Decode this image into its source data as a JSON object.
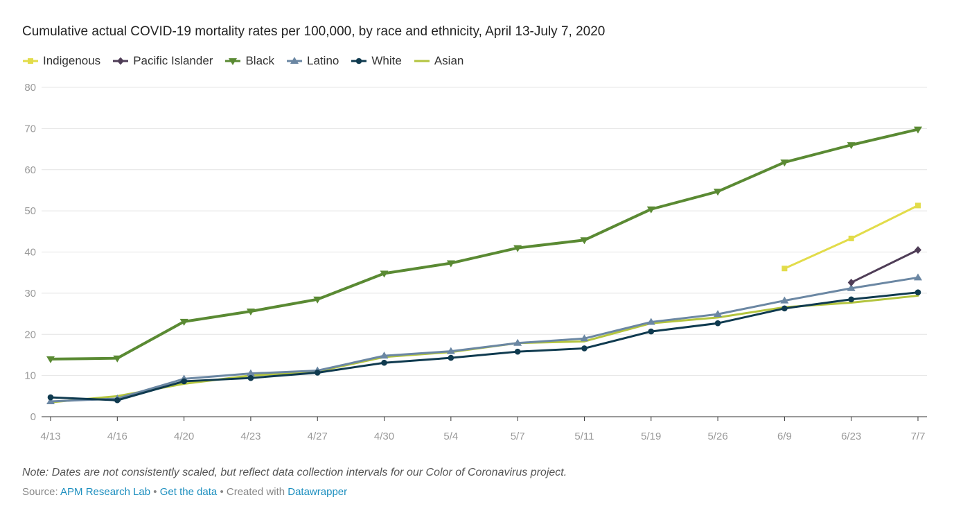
{
  "chart_data": {
    "type": "line",
    "title": "Cumulative actual COVID-19 mortality rates per 100,000, by race and ethnicity, April 13-July 7, 2020",
    "x": [
      "4/13",
      "4/16",
      "4/20",
      "4/23",
      "4/27",
      "4/30",
      "5/4",
      "5/7",
      "5/11",
      "5/19",
      "5/26",
      "6/9",
      "6/23",
      "7/7"
    ],
    "ylim": [
      0,
      80
    ],
    "yticks": [
      "0",
      "10",
      "20",
      "30",
      "40",
      "50",
      "60",
      "70",
      "80"
    ],
    "grid": true,
    "legend_position": "top-left",
    "series": [
      {
        "name": "Indigenous",
        "color": "#e2dc4a",
        "marker": "square",
        "values": [
          null,
          null,
          null,
          null,
          null,
          null,
          null,
          null,
          null,
          null,
          null,
          36.0,
          43.3,
          51.3
        ]
      },
      {
        "name": "Pacific Islander",
        "color": "#4f3d57",
        "marker": "diamond",
        "values": [
          null,
          null,
          null,
          null,
          null,
          null,
          null,
          null,
          null,
          null,
          null,
          null,
          32.6,
          40.5
        ]
      },
      {
        "name": "Black",
        "color": "#5a8a33",
        "marker": "triangle-down",
        "values": [
          14.0,
          14.2,
          23.1,
          25.6,
          28.5,
          34.8,
          37.3,
          41.0,
          42.9,
          50.4,
          54.7,
          61.8,
          66.0,
          69.8
        ]
      },
      {
        "name": "Latino",
        "color": "#6b87a3",
        "marker": "triangle-up",
        "values": [
          3.7,
          4.4,
          9.2,
          10.5,
          11.2,
          14.8,
          15.9,
          17.9,
          19.0,
          23.0,
          24.9,
          28.2,
          31.2,
          33.8
        ]
      },
      {
        "name": "White",
        "color": "#0f3a4f",
        "marker": "circle",
        "values": [
          4.7,
          4.0,
          8.6,
          9.4,
          10.7,
          13.1,
          14.3,
          15.8,
          16.6,
          20.7,
          22.7,
          26.3,
          28.5,
          30.2
        ]
      },
      {
        "name": "Asian",
        "color": "#b3c43e",
        "marker": "none",
        "values": [
          3.5,
          5.0,
          8.0,
          10.0,
          11.0,
          14.5,
          15.7,
          17.9,
          18.3,
          22.7,
          24.1,
          26.6,
          27.7,
          29.4
        ]
      }
    ]
  },
  "note": "Note: Dates are not consistently scaled, but reflect data collection intervals for our Color of Coronavirus project.",
  "footer": {
    "source_label": "Source: ",
    "source_link": "APM Research Lab",
    "sep1": " • ",
    "data_link": "Get the data",
    "sep2": " • Created with ",
    "tool_link": "Datawrapper"
  }
}
